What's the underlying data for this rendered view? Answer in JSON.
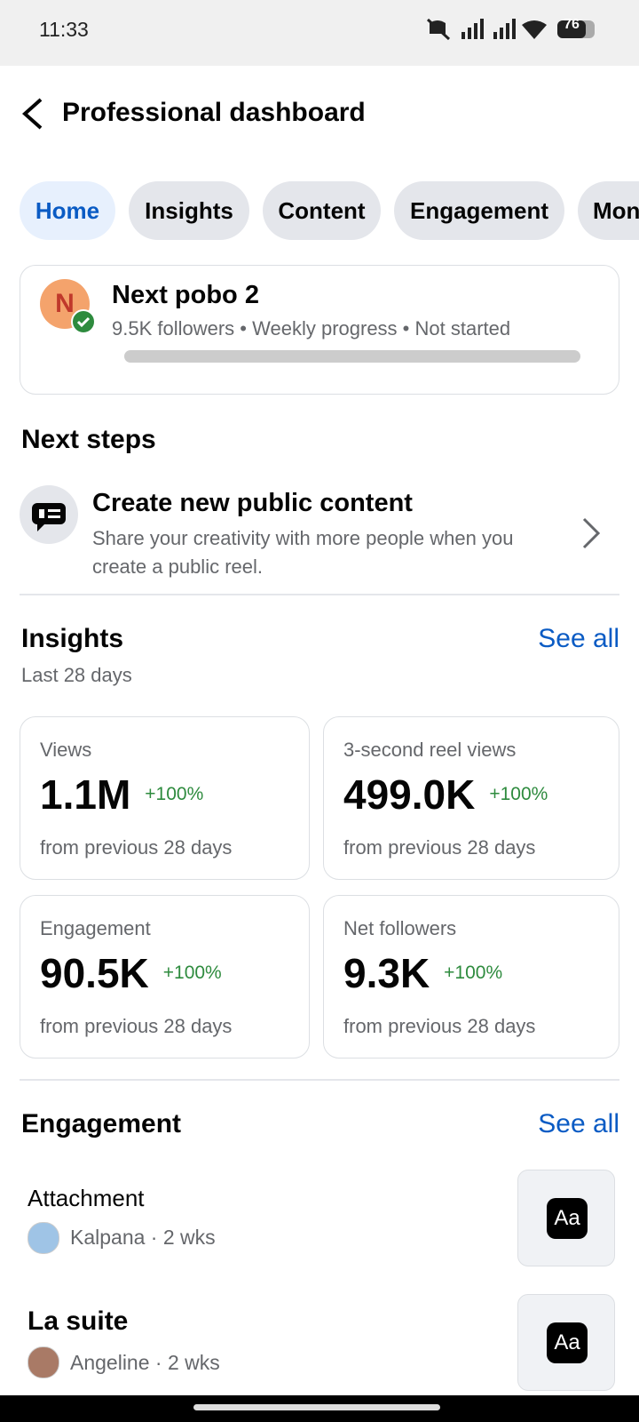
{
  "status_bar": {
    "time": "11:33",
    "battery": "76"
  },
  "header": {
    "title": "Professional dashboard"
  },
  "tabs": [
    "Home",
    "Insights",
    "Content",
    "Engagement",
    "Mon"
  ],
  "profile": {
    "initial": "N",
    "name": "Next pobo 2",
    "followers": "9.5K followers",
    "progress_label": "Weekly progress",
    "status": "Not started"
  },
  "next_steps": {
    "title": "Next steps",
    "item": {
      "title": "Create new public content",
      "description": "Share your creativity with more people when you create a public reel."
    }
  },
  "insights": {
    "title": "Insights",
    "see_all": "See all",
    "period": "Last 28 days",
    "cards": [
      {
        "label": "Views",
        "value": "1.1M",
        "change": "+100%",
        "note": "from previous 28 days"
      },
      {
        "label": "3-second reel views",
        "value": "499.0K",
        "change": "+100%",
        "note": "from previous 28 days"
      },
      {
        "label": "Engagement",
        "value": "90.5K",
        "change": "+100%",
        "note": "from previous 28 days"
      },
      {
        "label": "Net followers",
        "value": "9.3K",
        "change": "+100%",
        "note": "from previous 28 days"
      }
    ]
  },
  "engagement": {
    "title": "Engagement",
    "see_all": "See all",
    "items": [
      {
        "title": "Attachment",
        "meta": "Kalpana · 2 wks",
        "thumb": "Aa"
      },
      {
        "title": "La suite",
        "meta": "Angeline · 2 wks",
        "thumb": "Aa"
      }
    ]
  }
}
